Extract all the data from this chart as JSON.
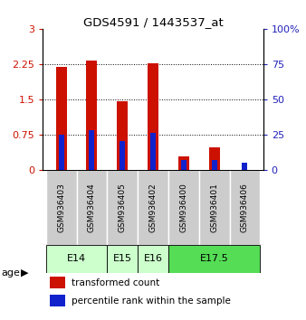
{
  "title": "GDS4591 / 1443537_at",
  "samples": [
    "GSM936403",
    "GSM936404",
    "GSM936405",
    "GSM936402",
    "GSM936400",
    "GSM936401",
    "GSM936406"
  ],
  "transformed_counts": [
    2.19,
    2.32,
    1.45,
    2.27,
    0.28,
    0.48,
    0.0
  ],
  "percentile_ranks": [
    25,
    28,
    20,
    26,
    7,
    7,
    5
  ],
  "bar_color_red": "#cc1100",
  "bar_color_blue": "#1122cc",
  "ylim_left": [
    0,
    3
  ],
  "ylim_right": [
    0,
    100
  ],
  "yticks_left": [
    0,
    0.75,
    1.5,
    2.25,
    3
  ],
  "yticks_right": [
    0,
    25,
    50,
    75,
    100
  ],
  "bar_width": 0.35,
  "blue_bar_width": 0.18,
  "sample_bg_color": "#cccccc",
  "left_axis_color": "#cc1100",
  "right_axis_color": "#2222bb",
  "age_groups": [
    {
      "label": "E14",
      "start": 0,
      "end": 1,
      "color": "#ccffcc"
    },
    {
      "label": "E15",
      "start": 2,
      "end": 2,
      "color": "#ccffcc"
    },
    {
      "label": "E16",
      "start": 3,
      "end": 3,
      "color": "#ccffcc"
    },
    {
      "label": "E17.5",
      "start": 4,
      "end": 6,
      "color": "#55dd55"
    }
  ],
  "legend_red_label": "transformed count",
  "legend_blue_label": "percentile rank within the sample",
  "age_label": "age"
}
